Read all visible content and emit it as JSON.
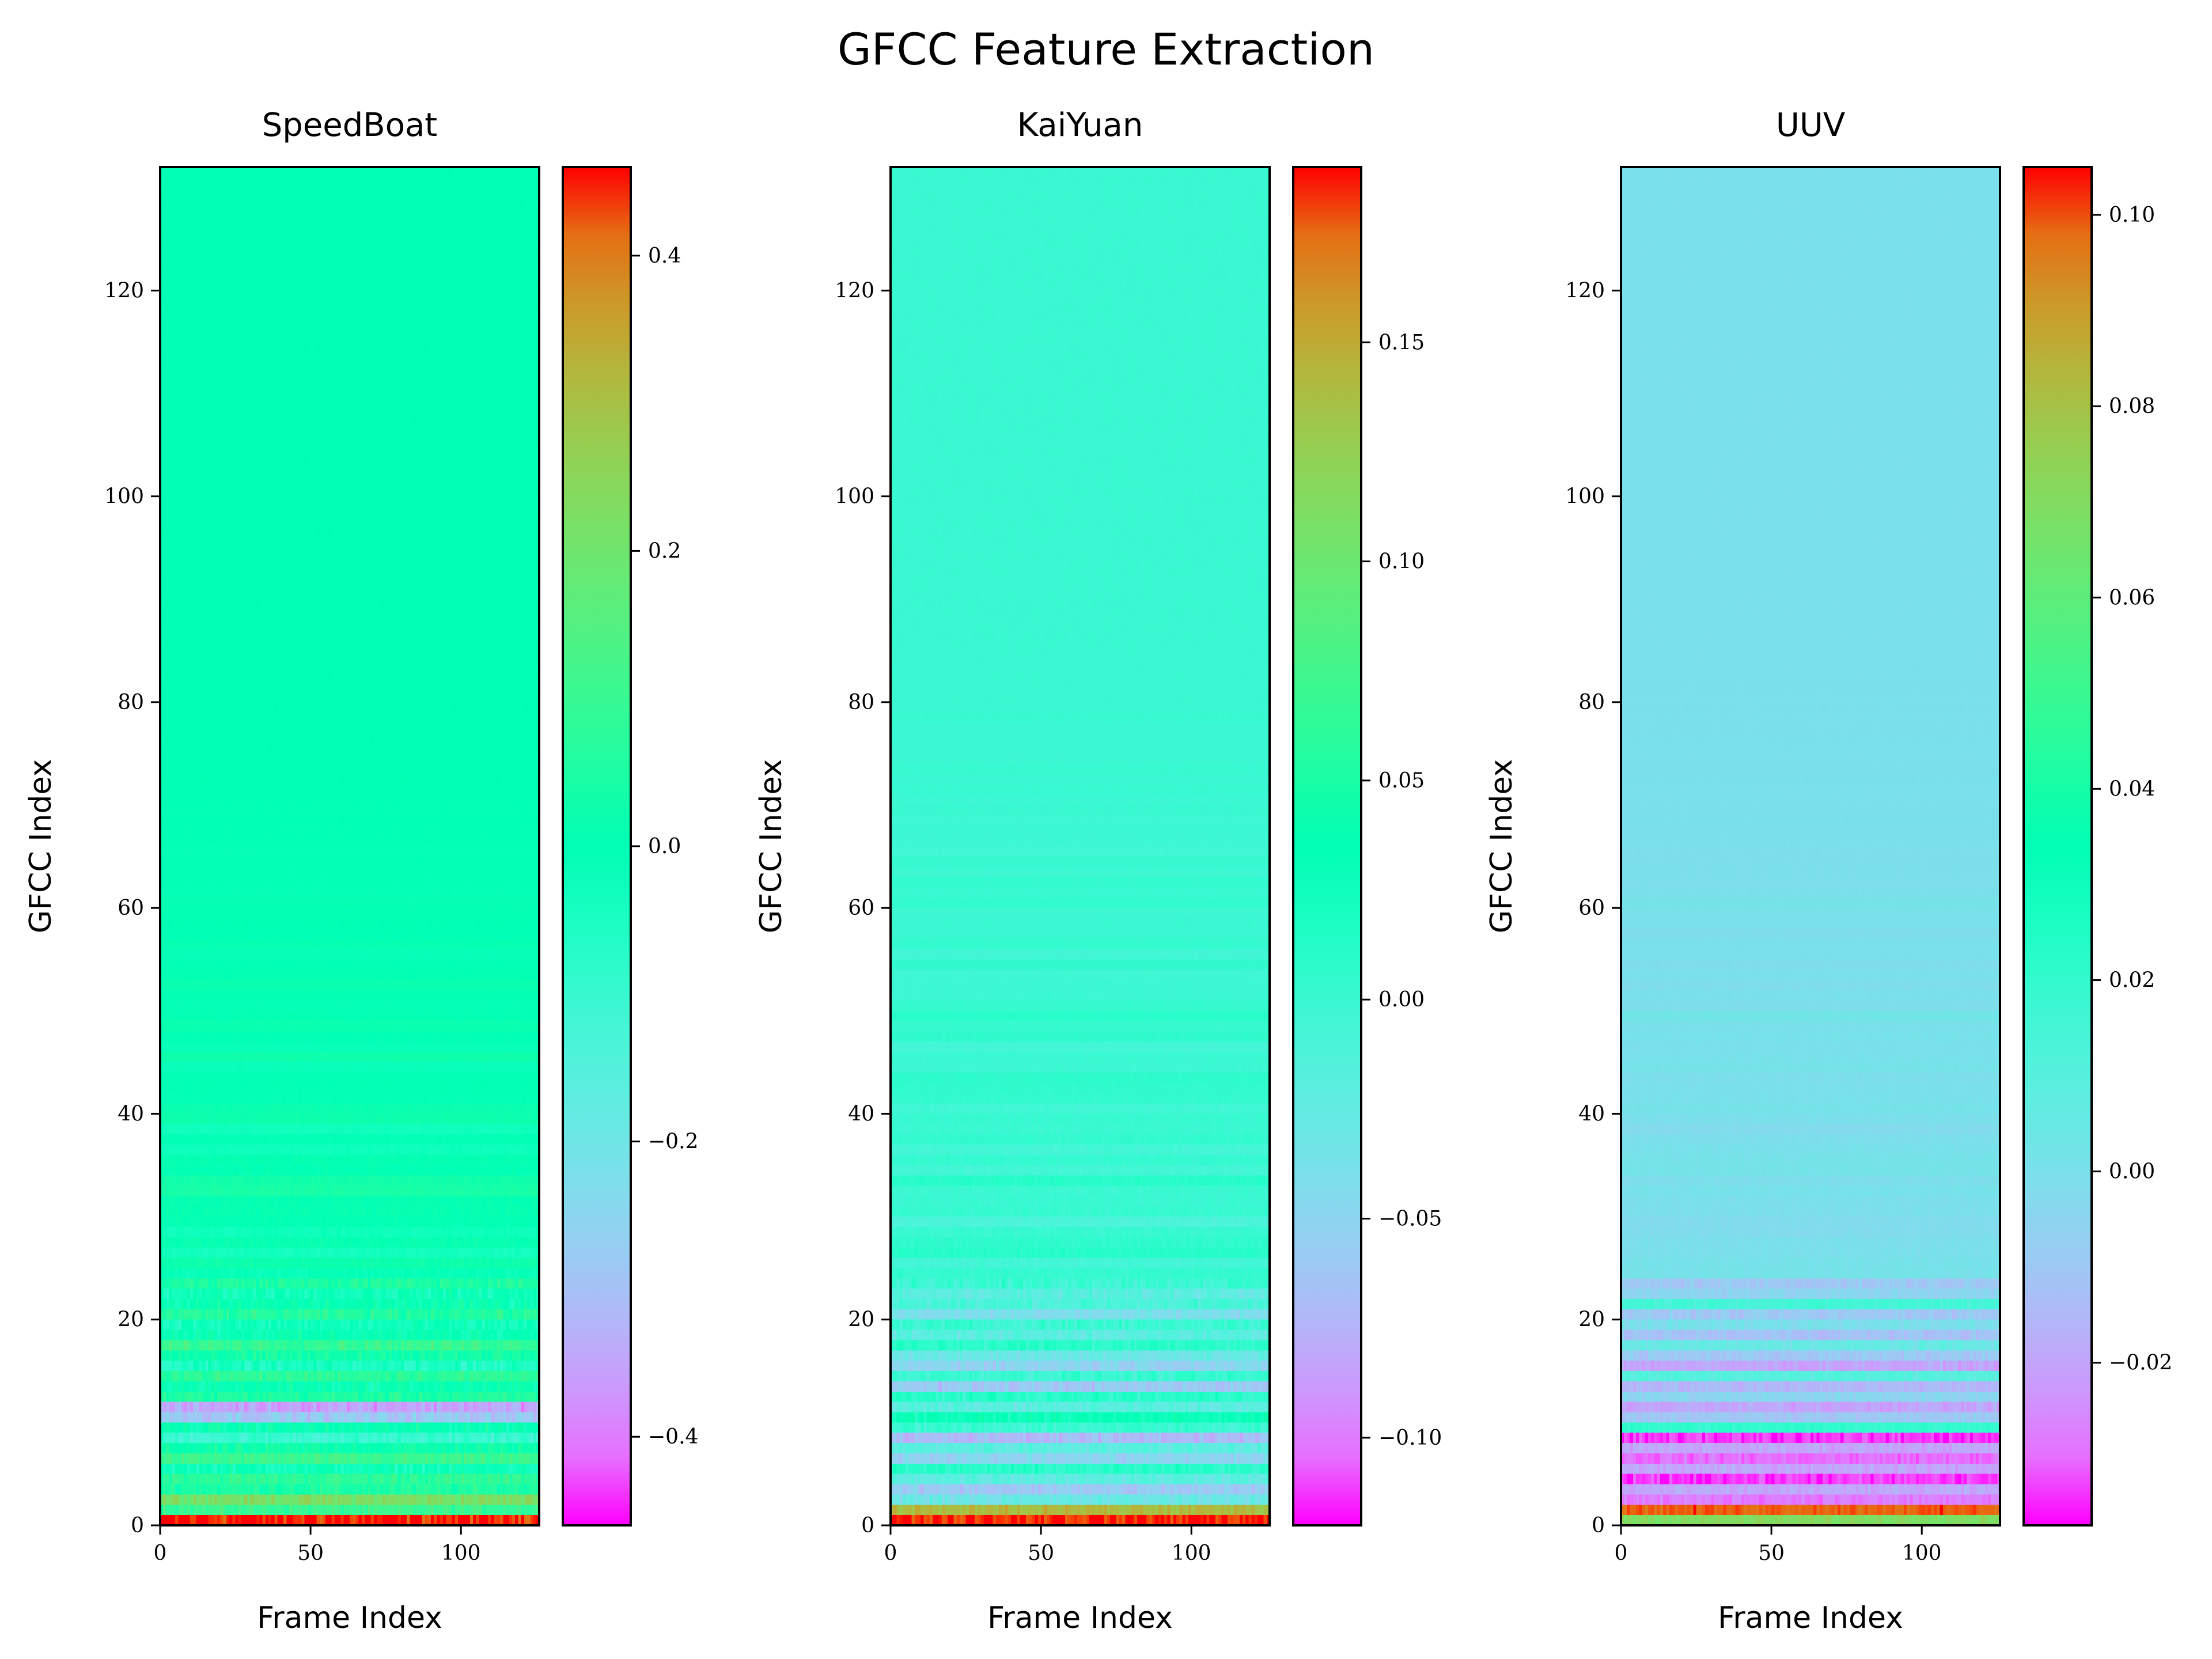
{
  "figure_title": "GFCC Feature Extraction",
  "chart_data": [
    {
      "type": "heatmap",
      "title": "SpeedBoat",
      "xlabel": "Frame Index",
      "ylabel": "GFCC Index",
      "xlim": [
        0,
        126
      ],
      "ylim": [
        0,
        132
      ],
      "xticks": [
        0,
        50,
        100
      ],
      "yticks": [
        0,
        20,
        40,
        60,
        80,
        100,
        120
      ],
      "colormap": "rainbow",
      "colorbar_range": [
        -0.46,
        0.46
      ],
      "colorbar_ticks": [
        -0.4,
        -0.2,
        0.0,
        0.2,
        0.4
      ],
      "colorbar_tick_labels": [
        "−0.4",
        "−0.2",
        "0.0",
        "0.2",
        "0.4"
      ],
      "background_value": 0.0,
      "low_row_values": [
        0.46,
        0.1,
        0.22,
        0.05,
        0.08,
        -0.02,
        0.1,
        0.02,
        -0.1,
        0.0,
        -0.28,
        -0.35,
        0.05,
        0.0,
        0.08,
        -0.05,
        0.03,
        0.1,
        0.0,
        -0.03,
        0.06,
        0.0,
        -0.02,
        0.05
      ],
      "row_variation": 0.12,
      "noise_decay_rows": 50
    },
    {
      "type": "heatmap",
      "title": "KaiYuan",
      "xlabel": "Frame Index",
      "ylabel": "GFCC Index",
      "xlim": [
        0,
        126
      ],
      "ylim": [
        0,
        132
      ],
      "xticks": [
        0,
        50,
        100
      ],
      "yticks": [
        0,
        20,
        40,
        60,
        80,
        100,
        120
      ],
      "colormap": "rainbow",
      "colorbar_range": [
        -0.12,
        0.19
      ],
      "colorbar_ticks": [
        -0.1,
        -0.05,
        0.0,
        0.05,
        0.1,
        0.15
      ],
      "colorbar_tick_labels": [
        "−0.10",
        "−0.05",
        "0.00",
        "0.05",
        "0.10",
        "0.15"
      ],
      "background_value": 0.0,
      "low_row_values": [
        0.19,
        0.14,
        -0.03,
        -0.06,
        -0.02,
        0.01,
        -0.05,
        -0.02,
        -0.07,
        0.0,
        0.03,
        -0.02,
        0.01,
        -0.06,
        0.0,
        -0.05,
        -0.03,
        0.01,
        -0.02,
        0.0,
        -0.04,
        -0.01,
        -0.02,
        0.0
      ],
      "row_variation": 0.035,
      "noise_decay_rows": 60
    },
    {
      "type": "heatmap",
      "title": "UUV",
      "xlabel": "Frame Index",
      "ylabel": "GFCC Index",
      "xlim": [
        0,
        126
      ],
      "ylim": [
        0,
        132
      ],
      "xticks": [
        0,
        50,
        100
      ],
      "yticks": [
        0,
        20,
        40,
        60,
        80,
        100,
        120
      ],
      "colormap": "rainbow",
      "colorbar_range": [
        -0.037,
        0.105
      ],
      "colorbar_ticks": [
        -0.02,
        0.0,
        0.02,
        0.04,
        0.06,
        0.08,
        0.1
      ],
      "colorbar_tick_labels": [
        "−0.02",
        "0.00",
        "0.02",
        "0.04",
        "0.06",
        "0.08",
        "0.10"
      ],
      "background_value": 0.0,
      "low_row_values": [
        0.07,
        0.1,
        -0.028,
        -0.02,
        -0.035,
        -0.02,
        -0.03,
        -0.02,
        -0.035,
        0.02,
        -0.01,
        -0.02,
        -0.005,
        -0.015,
        0.01,
        -0.02,
        -0.01,
        0.005,
        -0.012,
        0.0,
        -0.01,
        0.015,
        -0.005,
        -0.01
      ],
      "row_variation": 0.01,
      "noise_decay_rows": 60
    }
  ]
}
